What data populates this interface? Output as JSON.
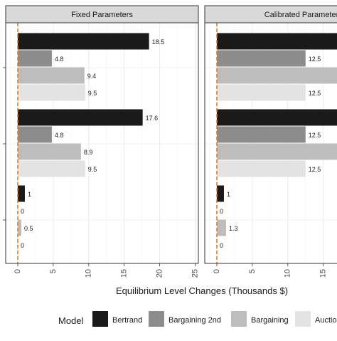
{
  "chart_data": {
    "type": "bar",
    "orientation": "horizontal",
    "xlabel": "Equilibrium Level Changes (Thousands $)",
    "ylabel": "",
    "xlim": [
      0,
      26
    ],
    "x_ticks": [
      0,
      5,
      10,
      15,
      20,
      25
    ],
    "grid": true,
    "reference_line": {
      "x": 0,
      "color": "#e07b2a",
      "style": "dashed"
    },
    "legend": {
      "title": "Model",
      "placement": "bottom",
      "entries": [
        {
          "name": "Bertrand",
          "color": "#1a1a1a"
        },
        {
          "name": "Bargaining 2nd",
          "color": "#8c8c8c"
        },
        {
          "name": "Bargaining",
          "color": "#bdbdbd"
        },
        {
          "name": "Auctio",
          "color": "#e3e3e3"
        }
      ]
    },
    "panels": [
      {
        "title": "Fixed Parameters",
        "groups": [
          {
            "values": [
              18.5,
              4.8,
              9.4,
              9.5
            ],
            "labels": [
              "18.5",
              "4.8",
              "9.4",
              "9.5"
            ]
          },
          {
            "values": [
              17.6,
              4.8,
              8.9,
              9.5
            ],
            "labels": [
              "17.6",
              "4.8",
              "8.9",
              "9.5"
            ]
          },
          {
            "values": [
              1,
              0,
              0.5,
              0
            ],
            "labels": [
              "1",
              "0",
              "0.5",
              "0"
            ]
          }
        ]
      },
      {
        "title": "Calibrated Parameter",
        "groups": [
          {
            "values": [
              18.5,
              12.5,
              18.5,
              12.5
            ],
            "labels": [
              "",
              "12.5",
              "",
              "12.5"
            ]
          },
          {
            "values": [
              17.6,
              12.5,
              18.5,
              12.5
            ],
            "labels": [
              "",
              "12.5",
              "",
              "12.5"
            ]
          },
          {
            "values": [
              1,
              0,
              1.3,
              0
            ],
            "labels": [
              "1",
              "0",
              "1.3",
              "0"
            ]
          }
        ]
      }
    ]
  }
}
